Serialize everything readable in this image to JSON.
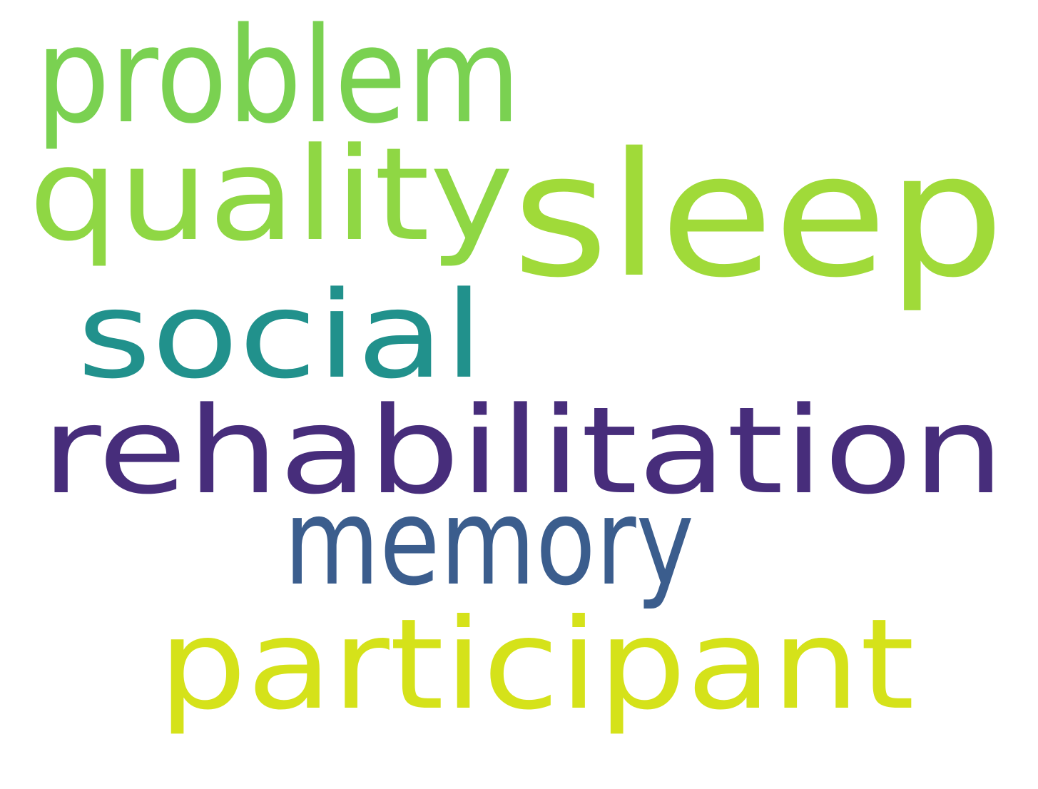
{
  "word_cloud": {
    "words": [
      {
        "id": "problem",
        "text": "problem",
        "color": "#7ad151"
      },
      {
        "id": "quality",
        "text": "quality",
        "color": "#8fd744"
      },
      {
        "id": "sleep",
        "text": "sleep",
        "color": "#a0da39"
      },
      {
        "id": "social",
        "text": "social",
        "color": "#21918c"
      },
      {
        "id": "rehabilitation",
        "text": "rehabilitation",
        "color": "#472d7b"
      },
      {
        "id": "memory",
        "text": "memory",
        "color": "#3b5d8d"
      },
      {
        "id": "participant",
        "text": "participant",
        "color": "#d5e21a"
      }
    ]
  }
}
